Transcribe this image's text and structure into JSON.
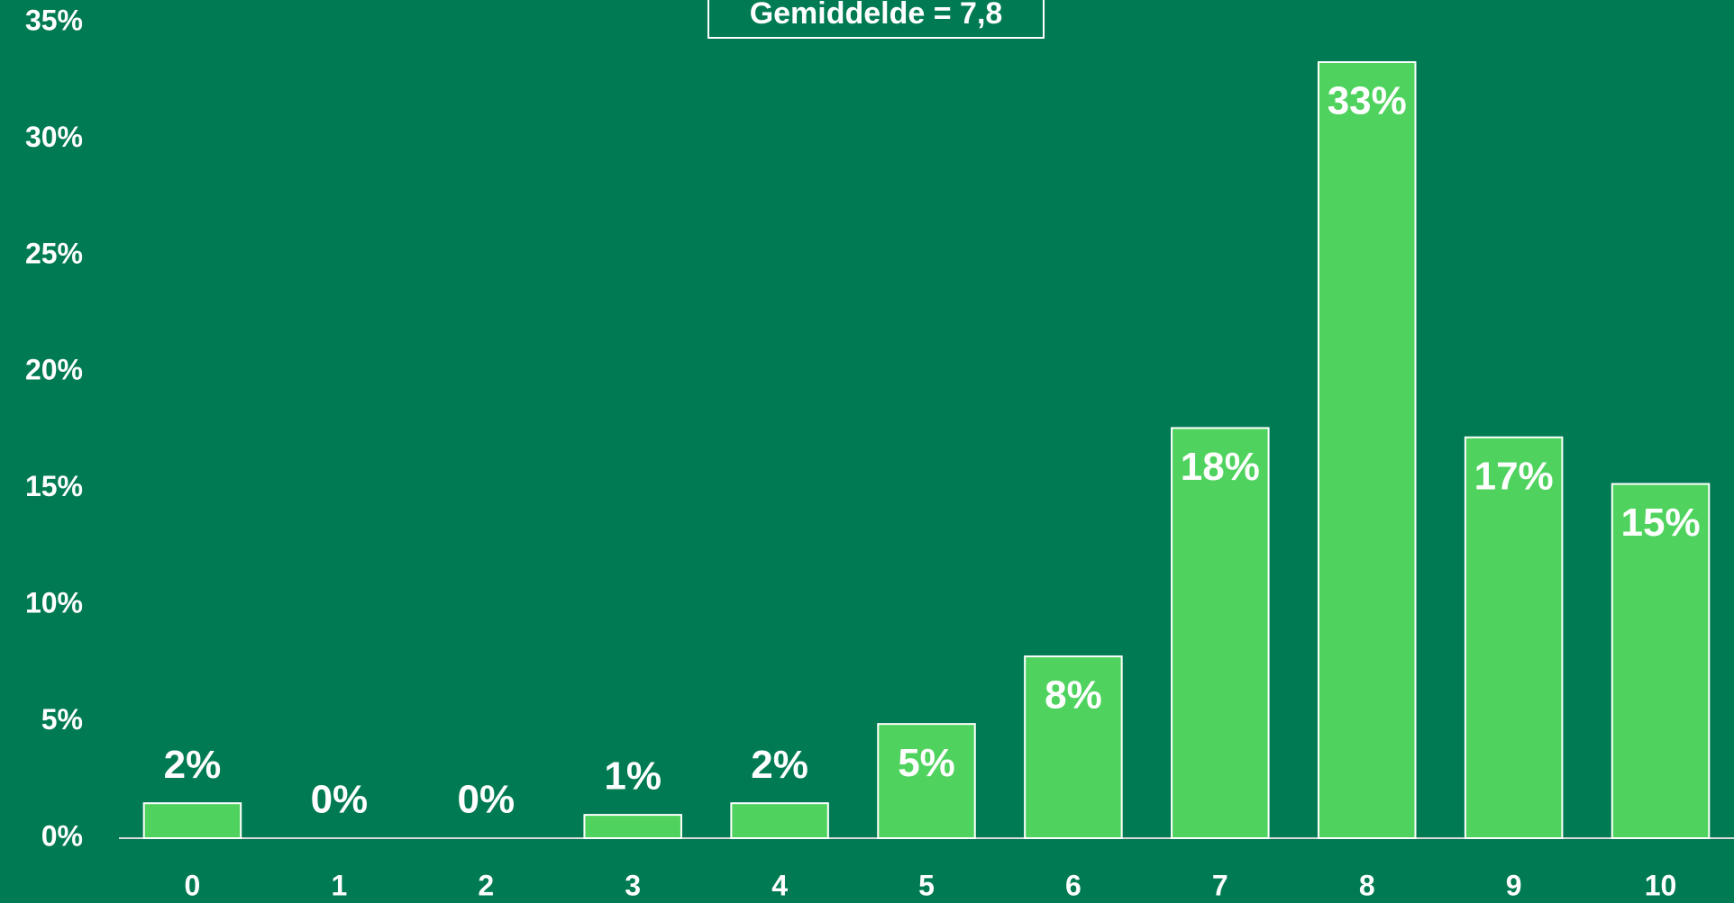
{
  "chart_data": {
    "type": "bar",
    "annotation": "Gemiddelde = 7,8",
    "categories": [
      "0",
      "1",
      "2",
      "3",
      "4",
      "5",
      "6",
      "7",
      "8",
      "9",
      "10"
    ],
    "values": [
      1.5,
      0,
      0,
      1.0,
      1.5,
      4.9,
      7.8,
      17.6,
      33.3,
      17.2,
      15.2
    ],
    "value_labels": [
      "2%",
      "0%",
      "0%",
      "1%",
      "2%",
      "5%",
      "8%",
      "18%",
      "33%",
      "17%",
      "15%"
    ],
    "color": "#4fd35e",
    "ylim": [
      0,
      35
    ],
    "yticks": [
      {
        "value": 0,
        "label": "0%"
      },
      {
        "value": 5,
        "label": "5%"
      },
      {
        "value": 10,
        "label": "10%"
      },
      {
        "value": 15,
        "label": "15%"
      },
      {
        "value": 20,
        "label": "20%"
      },
      {
        "value": 25,
        "label": "25%"
      },
      {
        "value": 30,
        "label": "30%"
      },
      {
        "value": 35,
        "label": "35%"
      }
    ],
    "grid": false
  }
}
